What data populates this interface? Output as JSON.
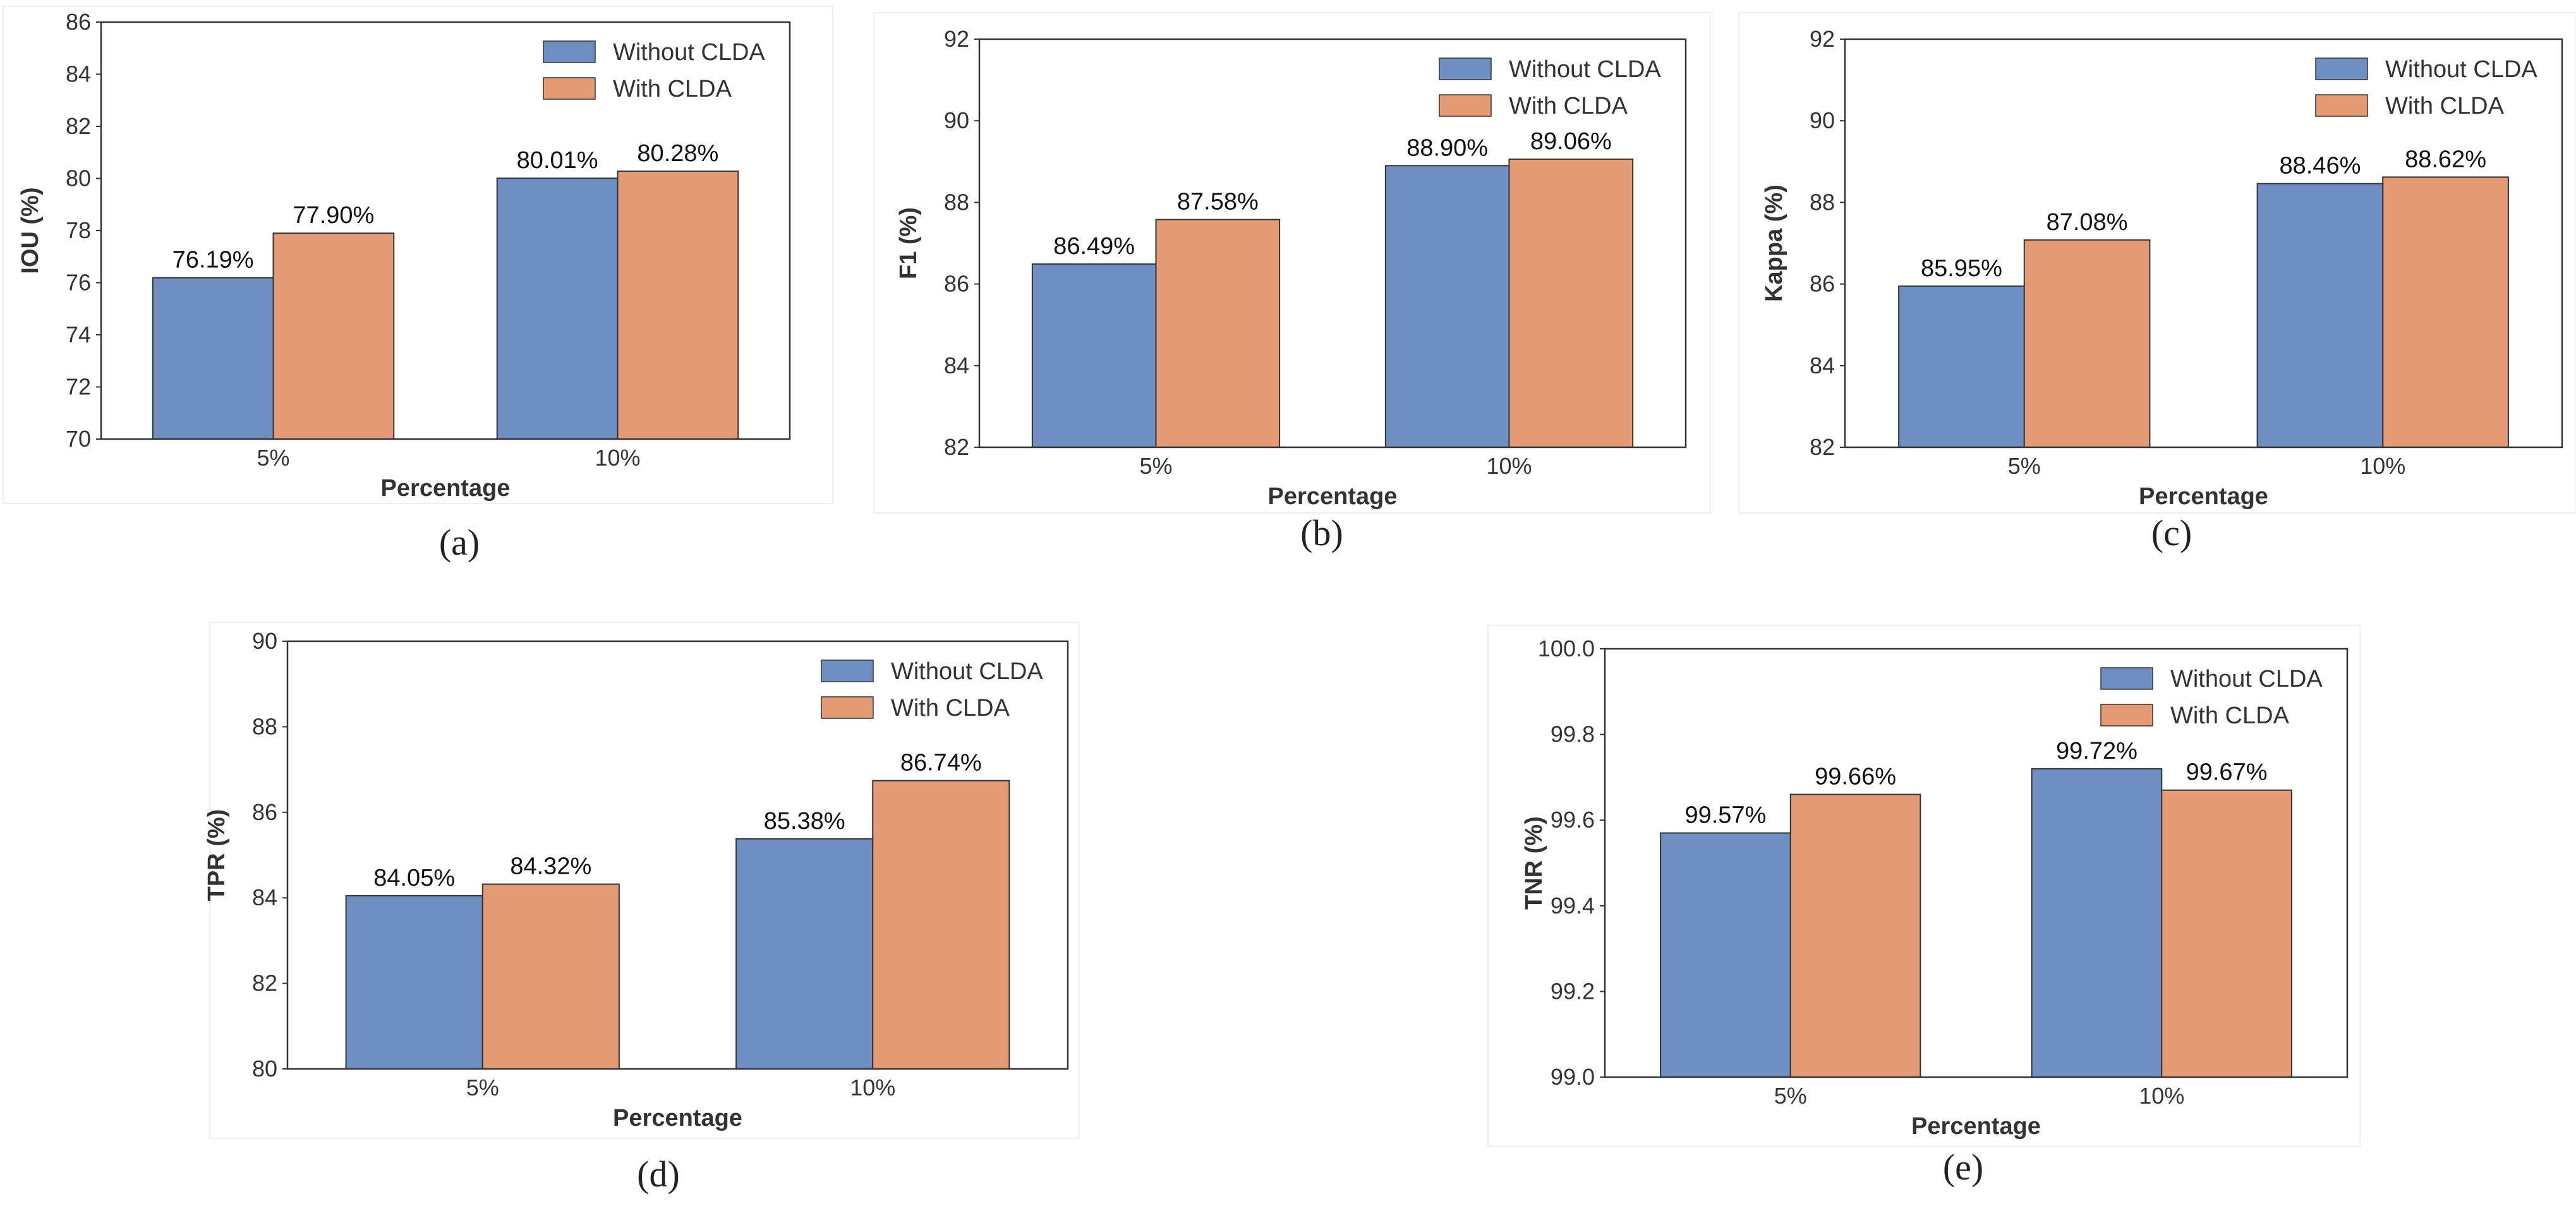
{
  "colors": {
    "without": "#6f8fc3",
    "with": "#e49b75",
    "frame": "#333333",
    "panel_border": "#eeeeee"
  },
  "chart_data": [
    {
      "type": "bar",
      "caption": "(a)",
      "categories": [
        "5%",
        "10%"
      ],
      "series": [
        {
          "name": "Without CLDA",
          "values": [
            76.19,
            80.01
          ],
          "labels": [
            "76.19%",
            "80.01%"
          ]
        },
        {
          "name": "With CLDA",
          "values": [
            77.9,
            80.28
          ],
          "labels": [
            "77.90%",
            "80.28%"
          ]
        }
      ],
      "xlabel": "Percentage",
      "ylabel": "IOU (%)",
      "ylim": [
        70,
        86
      ],
      "yticks": [
        "70",
        "72",
        "74",
        "76",
        "78",
        "80",
        "82",
        "84",
        "86"
      ],
      "legend": "top-right"
    },
    {
      "type": "bar",
      "caption": "(b)",
      "categories": [
        "5%",
        "10%"
      ],
      "series": [
        {
          "name": "Without CLDA",
          "values": [
            86.49,
            88.9
          ],
          "labels": [
            "86.49%",
            "88.90%"
          ]
        },
        {
          "name": "With CLDA",
          "values": [
            87.58,
            89.06
          ],
          "labels": [
            "87.58%",
            "89.06%"
          ]
        }
      ],
      "xlabel": "Percentage",
      "ylabel": "F1 (%)",
      "ylim": [
        82,
        92
      ],
      "yticks": [
        "82",
        "84",
        "86",
        "88",
        "90",
        "92"
      ],
      "legend": "top-right"
    },
    {
      "type": "bar",
      "caption": "(c)",
      "categories": [
        "5%",
        "10%"
      ],
      "series": [
        {
          "name": "Without CLDA",
          "values": [
            85.95,
            88.46
          ],
          "labels": [
            "85.95%",
            "88.46%"
          ]
        },
        {
          "name": "With CLDA",
          "values": [
            87.08,
            88.62
          ],
          "labels": [
            "87.08%",
            "88.62%"
          ]
        }
      ],
      "xlabel": "Percentage",
      "ylabel": "Kappa (%)",
      "ylim": [
        82,
        92
      ],
      "yticks": [
        "82",
        "84",
        "86",
        "88",
        "90",
        "92"
      ],
      "legend": "top-right"
    },
    {
      "type": "bar",
      "caption": "(d)",
      "categories": [
        "5%",
        "10%"
      ],
      "series": [
        {
          "name": "Without CLDA",
          "values": [
            84.05,
            85.38
          ],
          "labels": [
            "84.05%",
            "85.38%"
          ]
        },
        {
          "name": "With CLDA",
          "values": [
            84.32,
            86.74
          ],
          "labels": [
            "84.32%",
            "86.74%"
          ]
        }
      ],
      "xlabel": "Percentage",
      "ylabel": "TPR (%)",
      "ylim": [
        80,
        90
      ],
      "yticks": [
        "80",
        "82",
        "84",
        "86",
        "88",
        "90"
      ],
      "legend": "top-right"
    },
    {
      "type": "bar",
      "caption": "(e)",
      "categories": [
        "5%",
        "10%"
      ],
      "series": [
        {
          "name": "Without CLDA",
          "values": [
            99.57,
            99.72
          ],
          "labels": [
            "99.57%",
            "99.72%"
          ]
        },
        {
          "name": "With CLDA",
          "values": [
            99.66,
            99.67
          ],
          "labels": [
            "99.66%",
            "99.67%"
          ]
        }
      ],
      "xlabel": "Percentage",
      "ylabel": "TNR (%)",
      "ylim": [
        99.0,
        100.0
      ],
      "yticks": [
        "99.0",
        "99.2",
        "99.4",
        "99.6",
        "99.8",
        "100.0"
      ],
      "legend": "top-right"
    }
  ]
}
